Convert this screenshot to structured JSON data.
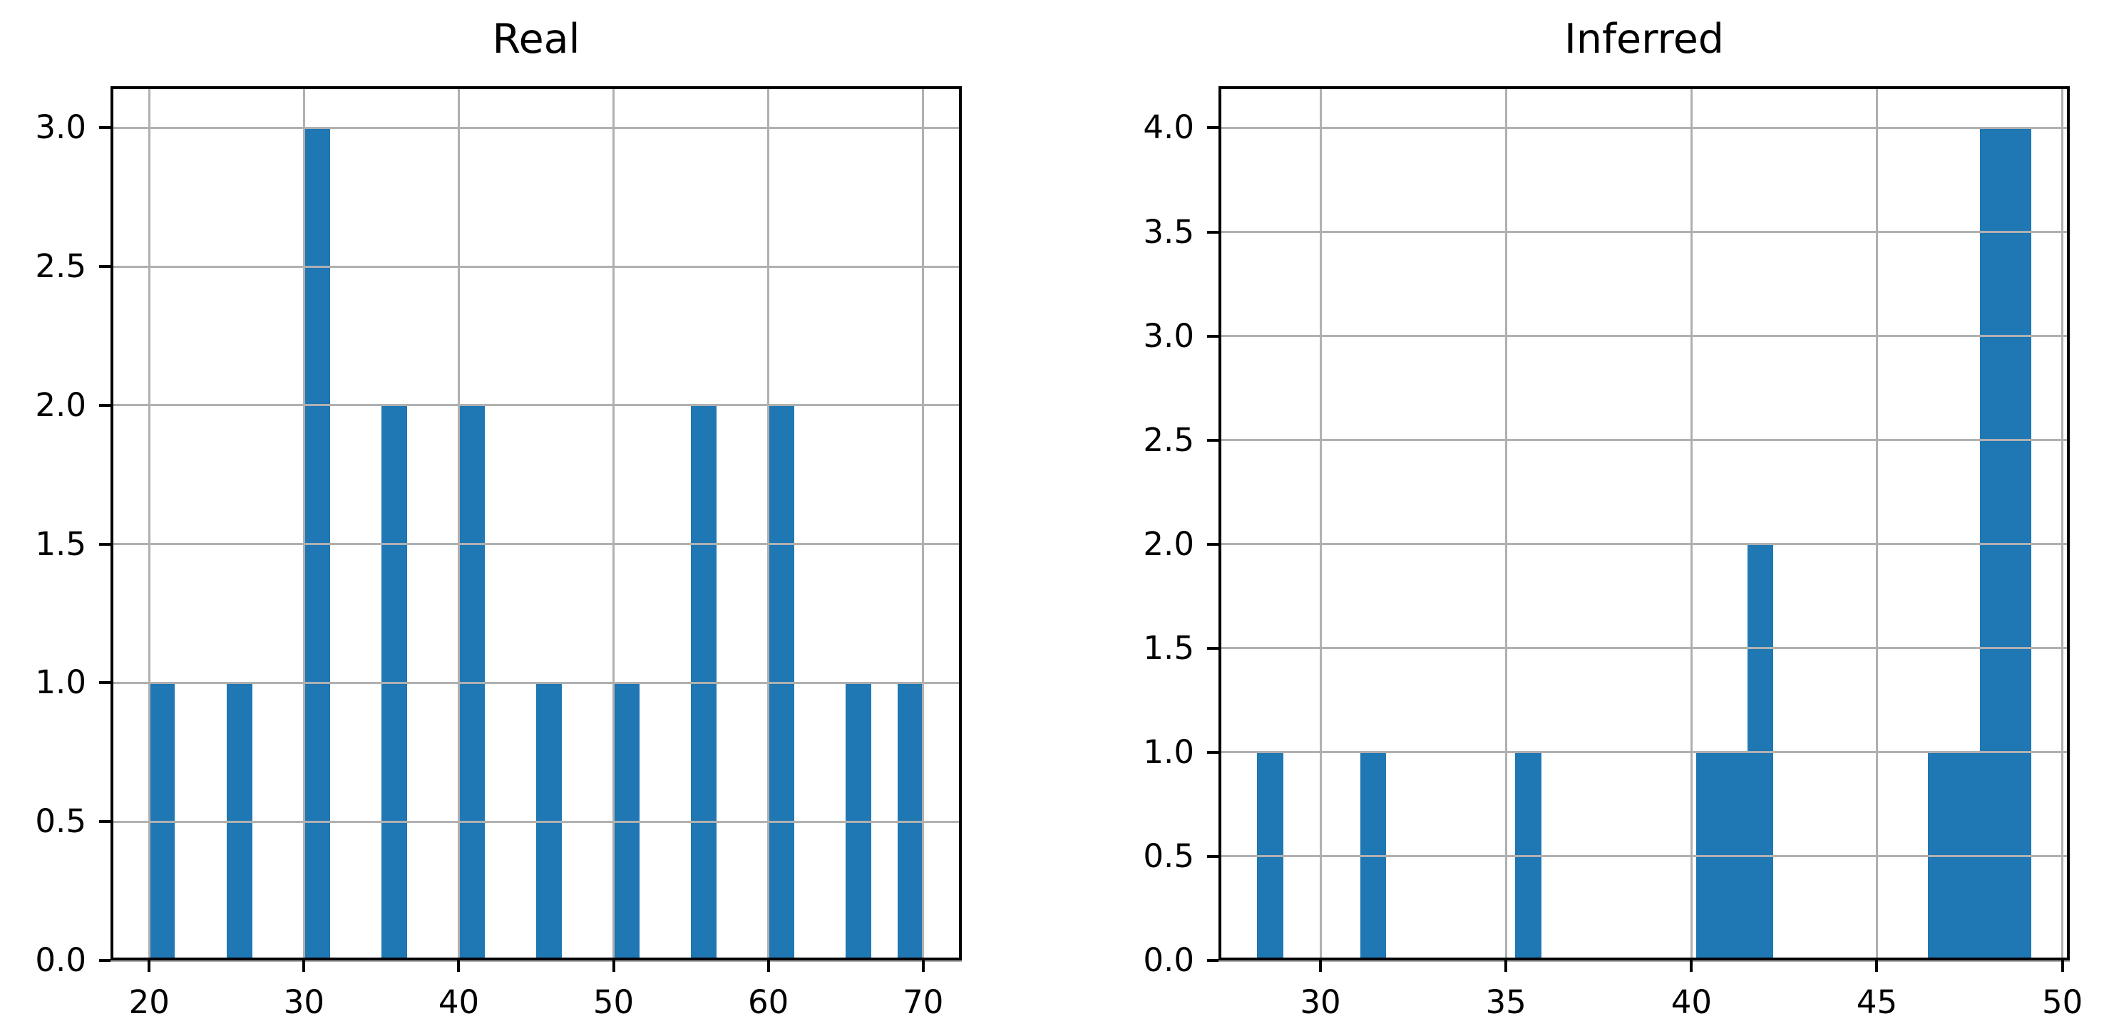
{
  "figure": {
    "background": "#ffffff",
    "bar_color": "#1f77b4",
    "grid_color": "#b0b0b0",
    "spine_color": "#000000",
    "tick_color": "#000000",
    "text_color": "#000000"
  },
  "chart_data": [
    {
      "type": "bar",
      "subtype": "histogram",
      "title": "Real",
      "xlabel": "",
      "ylabel": "",
      "grid": true,
      "legend_position": "none",
      "xlim": [
        17.5,
        72.5
      ],
      "ylim": [
        0,
        3.15
      ],
      "xticks": [
        {
          "value": 20,
          "label": "20"
        },
        {
          "value": 30,
          "label": "30"
        },
        {
          "value": 40,
          "label": "40"
        },
        {
          "value": 50,
          "label": "50"
        },
        {
          "value": 60,
          "label": "60"
        },
        {
          "value": 70,
          "label": "70"
        }
      ],
      "yticks": [
        {
          "value": 0.0,
          "label": "0.0"
        },
        {
          "value": 0.5,
          "label": "0.5"
        },
        {
          "value": 1.0,
          "label": "1.0"
        },
        {
          "value": 1.5,
          "label": "1.5"
        },
        {
          "value": 2.0,
          "label": "2.0"
        },
        {
          "value": 2.5,
          "label": "2.5"
        },
        {
          "value": 3.0,
          "label": "3.0"
        }
      ],
      "bars": [
        {
          "x_left": 20.0,
          "x_right": 21.6667,
          "count": 1
        },
        {
          "x_left": 25.0,
          "x_right": 26.6667,
          "count": 1
        },
        {
          "x_left": 30.0,
          "x_right": 31.6667,
          "count": 3
        },
        {
          "x_left": 35.0,
          "x_right": 36.6667,
          "count": 2
        },
        {
          "x_left": 40.0,
          "x_right": 41.6667,
          "count": 2
        },
        {
          "x_left": 45.0,
          "x_right": 46.6667,
          "count": 1
        },
        {
          "x_left": 50.0,
          "x_right": 51.6667,
          "count": 1
        },
        {
          "x_left": 55.0,
          "x_right": 56.6667,
          "count": 2
        },
        {
          "x_left": 60.0,
          "x_right": 61.6667,
          "count": 2
        },
        {
          "x_left": 65.0,
          "x_right": 66.6667,
          "count": 1
        },
        {
          "x_left": 68.3333,
          "x_right": 70.0,
          "count": 1
        }
      ]
    },
    {
      "type": "bar",
      "subtype": "histogram",
      "title": "Inferred",
      "xlabel": "",
      "ylabel": "",
      "grid": true,
      "legend_position": "none",
      "xlim": [
        27.25,
        50.2
      ],
      "ylim": [
        0,
        4.2
      ],
      "xticks": [
        {
          "value": 30,
          "label": "30"
        },
        {
          "value": 35,
          "label": "35"
        },
        {
          "value": 40,
          "label": "40"
        },
        {
          "value": 45,
          "label": "45"
        },
        {
          "value": 50,
          "label": "50"
        }
      ],
      "yticks": [
        {
          "value": 0.0,
          "label": "0.0"
        },
        {
          "value": 0.5,
          "label": "0.5"
        },
        {
          "value": 1.0,
          "label": "1.0"
        },
        {
          "value": 1.5,
          "label": "1.5"
        },
        {
          "value": 2.0,
          "label": "2.0"
        },
        {
          "value": 2.5,
          "label": "2.5"
        },
        {
          "value": 3.0,
          "label": "3.0"
        },
        {
          "value": 3.5,
          "label": "3.5"
        },
        {
          "value": 4.0,
          "label": "4.0"
        }
      ],
      "bars": [
        {
          "x_left": 28.29,
          "x_right": 28.99,
          "count": 1
        },
        {
          "x_left": 31.07,
          "x_right": 31.77,
          "count": 1
        },
        {
          "x_left": 35.25,
          "x_right": 35.95,
          "count": 1
        },
        {
          "x_left": 40.12,
          "x_right": 40.81,
          "count": 1
        },
        {
          "x_left": 40.81,
          "x_right": 41.51,
          "count": 1
        },
        {
          "x_left": 41.51,
          "x_right": 42.21,
          "count": 2
        },
        {
          "x_left": 46.38,
          "x_right": 47.07,
          "count": 1
        },
        {
          "x_left": 47.07,
          "x_right": 47.77,
          "count": 1
        },
        {
          "x_left": 47.77,
          "x_right": 48.46,
          "count": 4
        },
        {
          "x_left": 48.46,
          "x_right": 49.16,
          "count": 4
        }
      ]
    }
  ]
}
